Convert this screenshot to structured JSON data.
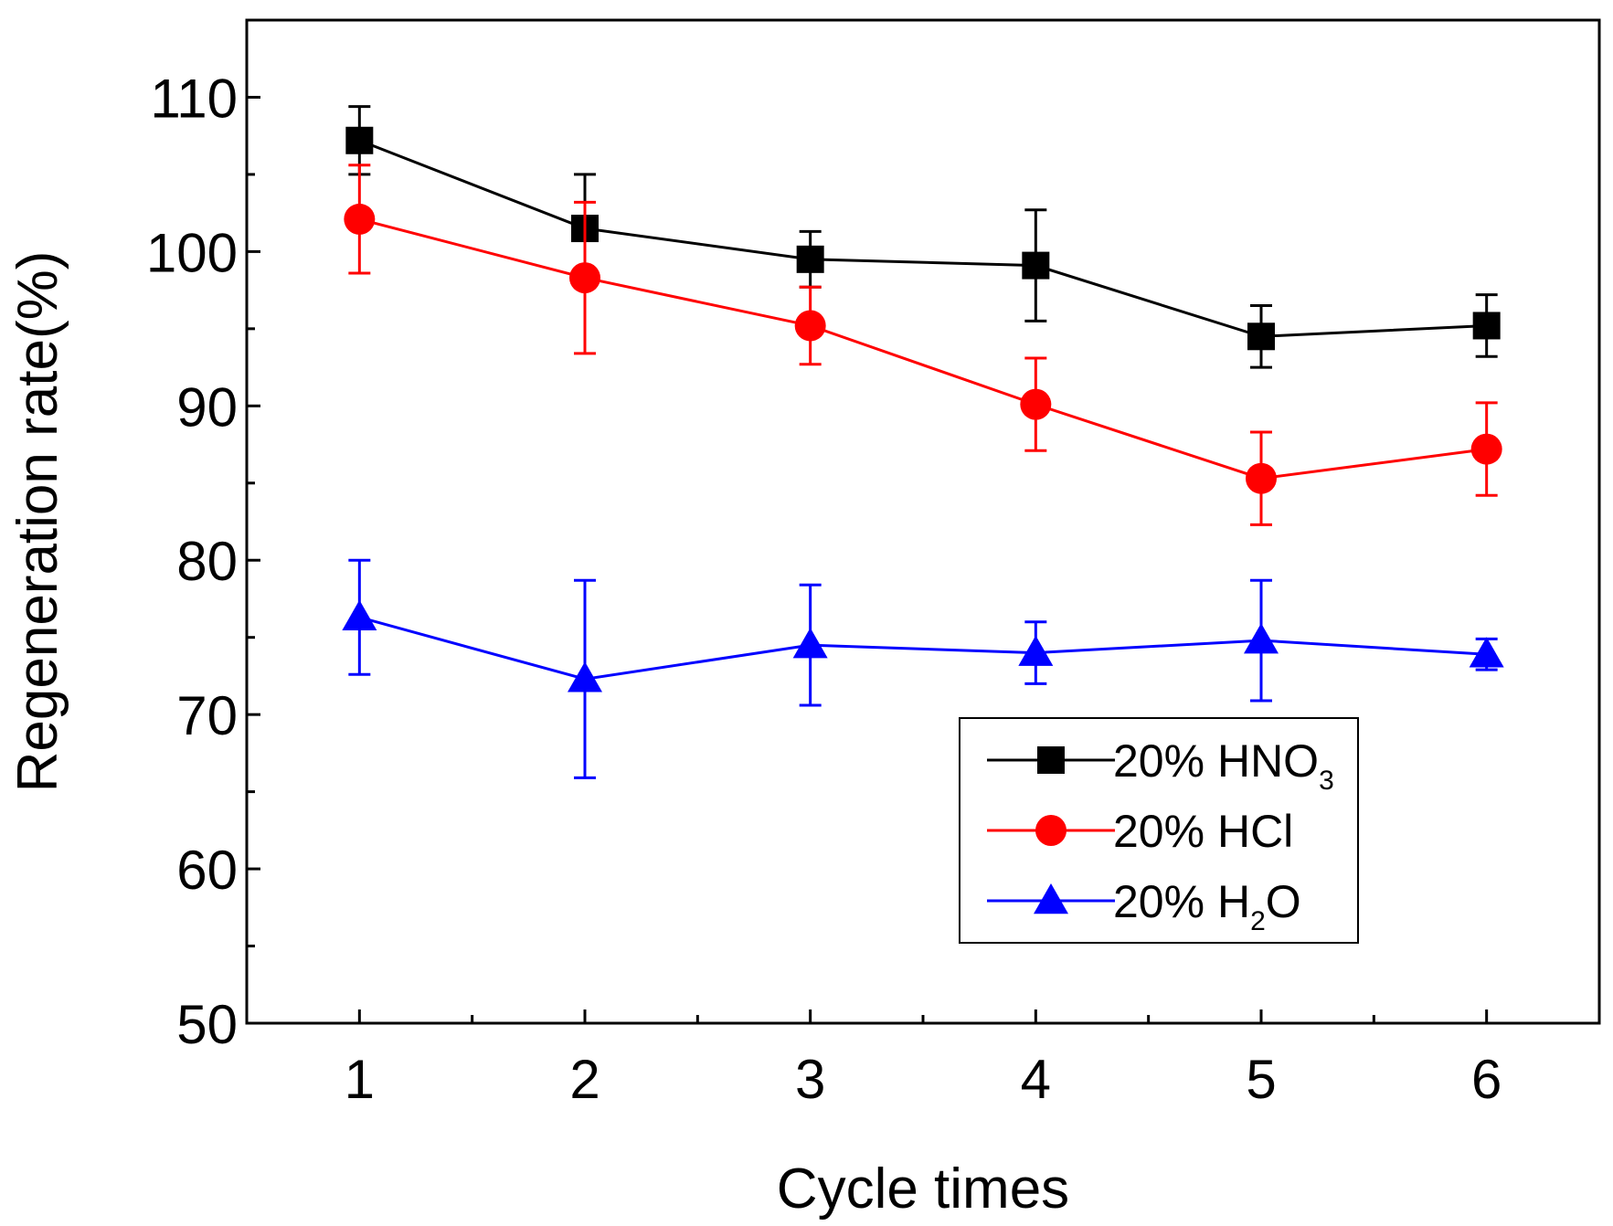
{
  "chart_data": {
    "type": "line",
    "title": "",
    "xlabel": "Cycle times",
    "ylabel": "Regeneration rate(%)",
    "x": [
      1,
      2,
      3,
      4,
      5,
      6
    ],
    "xlim": [
      0.5,
      6.5
    ],
    "ylim": [
      50,
      115
    ],
    "yticks": [
      50,
      60,
      70,
      80,
      90,
      100,
      110
    ],
    "xticks": [
      1,
      2,
      3,
      4,
      5,
      6
    ],
    "grid": false,
    "legend_position": "lower-right",
    "series": [
      {
        "name": "20% HNO3",
        "label_main": "20% HNO",
        "label_sub": "3",
        "label_tail": "",
        "marker": "square",
        "color": "#000000",
        "values": [
          107.2,
          101.5,
          99.5,
          99.1,
          94.5,
          95.2
        ],
        "errors": [
          2.2,
          3.5,
          1.8,
          3.6,
          2.0,
          2.0
        ]
      },
      {
        "name": "20% HCl",
        "label_main": "20% HCl",
        "label_sub": "",
        "label_tail": "",
        "marker": "circle",
        "color": "#ff0000",
        "values": [
          102.1,
          98.3,
          95.2,
          90.1,
          85.3,
          87.2
        ],
        "errors": [
          3.5,
          4.9,
          2.5,
          3.0,
          3.0,
          3.0
        ]
      },
      {
        "name": "20% H2O",
        "label_main": "20% H",
        "label_sub": "2",
        "label_tail": "O",
        "marker": "triangle",
        "color": "#0000ff",
        "values": [
          76.3,
          72.3,
          74.5,
          74.0,
          74.8,
          73.9
        ],
        "errors": [
          3.7,
          6.4,
          3.9,
          2.0,
          3.9,
          1.0
        ]
      }
    ]
  }
}
